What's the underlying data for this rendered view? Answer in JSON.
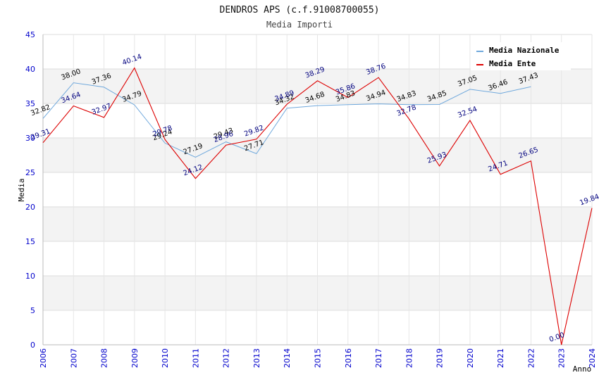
{
  "chart_data": {
    "type": "line",
    "title": "DENDROS APS (c.f.91008700055)",
    "subtitle": "Media Importi",
    "xlabel": "Anno",
    "ylabel": "Media",
    "ylim": [
      0,
      45
    ],
    "y_ticks": [
      0,
      5,
      10,
      15,
      20,
      25,
      30,
      35,
      40,
      45
    ],
    "categories": [
      "2006",
      "2007",
      "2008",
      "2009",
      "2010",
      "2011",
      "2012",
      "2013",
      "2014",
      "2015",
      "2016",
      "2017",
      "2018",
      "2019",
      "2020",
      "2021",
      "2022",
      "2023",
      "2024"
    ],
    "series": [
      {
        "name": "Media Nazionale",
        "color": "#6fa8dc",
        "label_color": "#000000",
        "values": [
          32.82,
          38.0,
          37.36,
          34.79,
          29.24,
          27.19,
          29.43,
          27.71,
          34.32,
          34.68,
          34.83,
          34.94,
          34.83,
          34.85,
          37.05,
          36.46,
          37.43,
          null,
          null
        ],
        "labels": [
          "32.82",
          "38.00",
          "37.36",
          "34.79",
          "29.24",
          "27.19",
          "29.43",
          "27.71",
          "34.32",
          "34.68",
          "34.83",
          "34.94",
          "34.83",
          "34.85",
          "37.05",
          "36.46",
          "37.43",
          null,
          null
        ]
      },
      {
        "name": "Media Ente",
        "color": "#dd0000",
        "label_color": "#00007f",
        "values": [
          29.31,
          34.64,
          32.97,
          40.14,
          29.78,
          24.12,
          28.96,
          29.82,
          34.89,
          38.29,
          35.86,
          38.76,
          32.78,
          25.93,
          32.54,
          24.71,
          26.65,
          0.0,
          19.84
        ],
        "labels": [
          "29.31",
          "34.64",
          "32.97",
          "40.14",
          "29.78",
          "24.12",
          "28.96",
          "29.82",
          "34.89",
          "38.29",
          "35.86",
          "38.76",
          "32.78",
          "25.93",
          "32.54",
          "24.71",
          "26.65",
          "0.00",
          "19.84"
        ]
      }
    ],
    "grid": true,
    "legend": "top-right"
  }
}
